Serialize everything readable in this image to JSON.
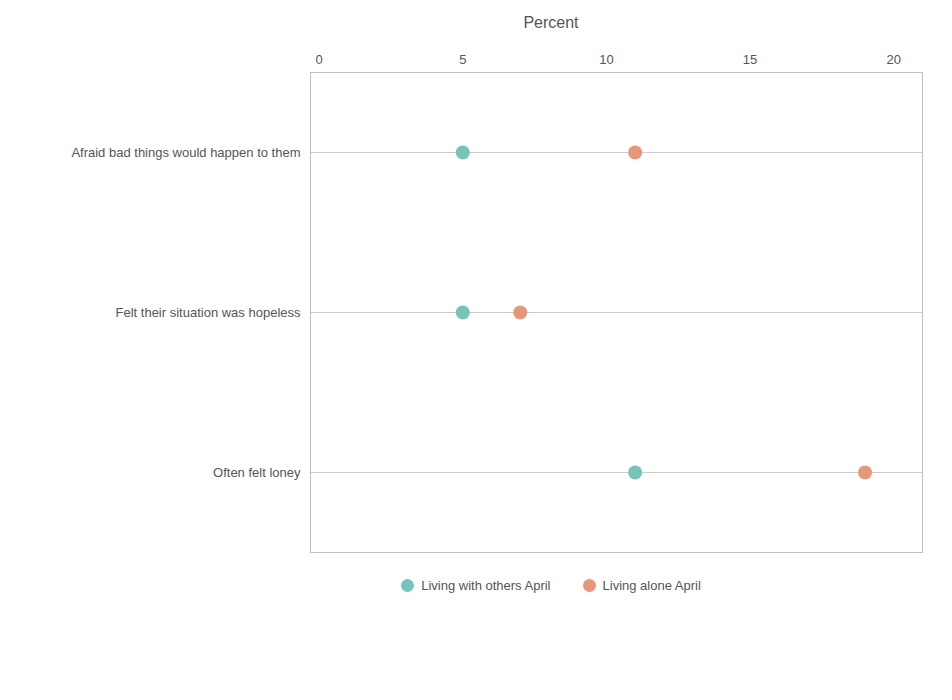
{
  "chart_data": {
    "type": "dot",
    "title": "Percent",
    "orientation": "horizontal",
    "categories": [
      "Afraid bad things would happen to them",
      "Felt their situation was hopeless",
      "Often felt loney"
    ],
    "series": [
      {
        "name": "Living with others April",
        "color": "#72C5B8",
        "values": [
          5,
          5,
          11
        ]
      },
      {
        "name": "Living alone April",
        "color": "#E8967A",
        "values": [
          11,
          7,
          19
        ]
      }
    ],
    "xlim": [
      -0.3,
      21
    ],
    "xticks": [
      0,
      5,
      10,
      15,
      20
    ],
    "grid": true,
    "legend": "bottom"
  }
}
